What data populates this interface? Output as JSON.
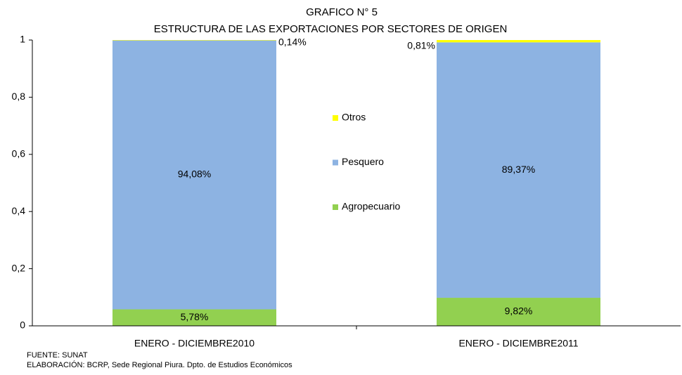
{
  "chart_data": {
    "type": "stacked_bar",
    "title": "GRAFICO N° 5",
    "subtitle": "ESTRUCTURA DE LAS EXPORTACIONES POR SECTORES DE ORIGEN",
    "categories": [
      "ENERO - DICIEMBRE2010",
      "ENERO - DICIEMBRE2011"
    ],
    "series": [
      {
        "name": "Agropecuario",
        "color": "#92d050",
        "values": [
          0.0578,
          0.0982
        ],
        "value_labels": [
          "5,78%",
          "9,82%"
        ]
      },
      {
        "name": "Pesquero",
        "color": "#8db3e2",
        "values": [
          0.9408,
          0.8937
        ],
        "value_labels": [
          "94,08%",
          "89,37%"
        ]
      },
      {
        "name": "Otros",
        "color": "#ffff00",
        "values": [
          0.0014,
          0.0081
        ],
        "value_labels": [
          "0,14%",
          "0,81%"
        ]
      }
    ],
    "ylim": [
      0,
      1
    ],
    "yticks": [
      0,
      {
        "value": 0.2,
        "label": "0,2"
      },
      {
        "value": 0.4,
        "label": "0,4"
      },
      {
        "value": 0.6,
        "label": "0,6"
      },
      {
        "value": 0.8,
        "label": "0,8"
      },
      1
    ],
    "legend": "center",
    "footnotes": [
      "FUENTE: SUNAT",
      "ELABORACIÓN: BCRP, Sede Regional Piura. Dpto. de Estudios Económicos"
    ]
  }
}
